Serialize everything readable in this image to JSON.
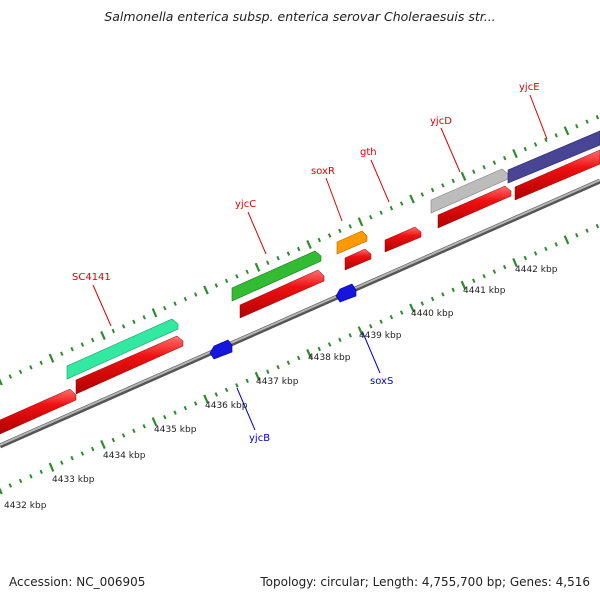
{
  "title": "Salmonella enterica subsp. enterica serovar Choleraesuis str...",
  "footer": {
    "accession": "Accession: NC_006905",
    "summary": "Topology: circular; Length: 4,755,700 bp; Genes: 4,516"
  },
  "colors": {
    "backbone": "#8a8a8a",
    "tick": "#2e8b2e",
    "label_top": "#dd0000",
    "label_bottom": "#0000cc",
    "cds_red": "#ee1111",
    "sc4141": "#33e8a0",
    "yjcC": "#33bb33",
    "soxR": "#ff9900",
    "yjcD": "#bcbcbc",
    "yjcE": "#4a4495",
    "reverse_blue": "#1515dd"
  },
  "scale_labels": [
    "4432 kbp",
    "4433 kbp",
    "4434 kbp",
    "4435 kbp",
    "4436 kbp",
    "4437 kbp",
    "4438 kbp",
    "4439 kbp",
    "4440 kbp",
    "4441 kbp",
    "4442 kbp"
  ],
  "genes_forward": [
    {
      "name": "SC4141",
      "color": "#33e8a0"
    },
    {
      "name": "yjcC",
      "color": "#33bb33"
    },
    {
      "name": "soxR",
      "color": "#ff9900"
    },
    {
      "name": "gth",
      "color": "#ee1111"
    },
    {
      "name": "yjcD",
      "color": "#bcbcbc"
    },
    {
      "name": "yjcE",
      "color": "#4a4495"
    }
  ],
  "genes_reverse": [
    {
      "name": "yjcB",
      "color": "#1515dd"
    },
    {
      "name": "soxS",
      "color": "#1515dd"
    }
  ]
}
